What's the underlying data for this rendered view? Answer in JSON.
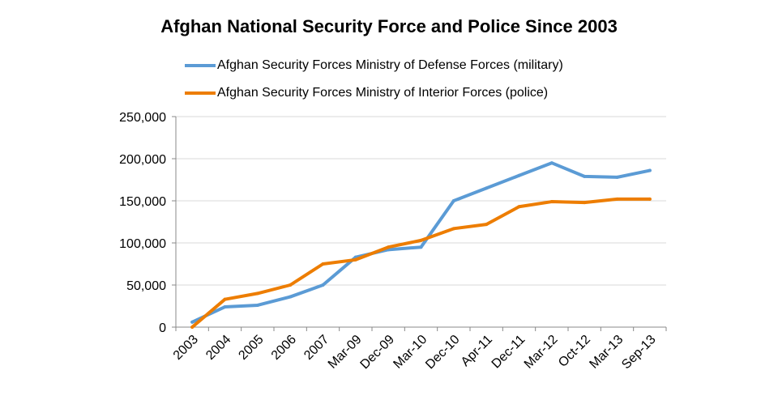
{
  "chart_data": {
    "type": "line",
    "title": "Afghan National Security Force and Police Since 2003",
    "categories": [
      "2003",
      "2004",
      "2005",
      "2006",
      "2007",
      "Mar-09",
      "Dec-09",
      "Mar-10",
      "Dec-10",
      "Apr-11",
      "Dec-11",
      "Mar-12",
      "Oct-12",
      "Mar-13",
      "Sep-13"
    ],
    "series": [
      {
        "name": "Afghan Security Forces Ministry of Defense Forces (military)",
        "color": "#5b9bd5",
        "values": [
          6000,
          24000,
          26000,
          36000,
          50000,
          83000,
          92000,
          95000,
          150000,
          165000,
          180000,
          195000,
          179000,
          178000,
          186000
        ]
      },
      {
        "name": "Afghan Security Forces Ministry of Interior Forces (police)",
        "color": "#ed7d00",
        "values": [
          0,
          33000,
          40000,
          50000,
          75000,
          80000,
          95000,
          103000,
          117000,
          122000,
          143000,
          149000,
          148000,
          152000,
          152000
        ]
      }
    ],
    "ylim": [
      0,
      250000
    ],
    "yticks": [
      "0",
      "50,000",
      "100,000",
      "150,000",
      "200,000",
      "250,000"
    ],
    "grid": true,
    "legend": "top"
  }
}
